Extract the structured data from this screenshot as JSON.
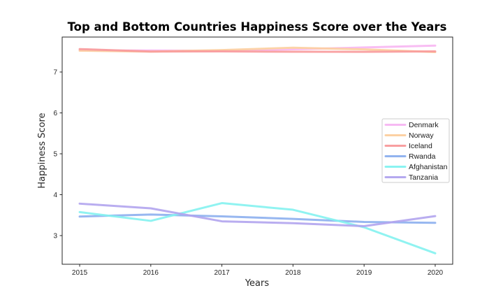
{
  "chart_data": {
    "type": "line",
    "title": "Top and Bottom Countries Happiness Score over the Years",
    "xlabel": "Years",
    "ylabel": "Happiness Score",
    "x": [
      2015,
      2016,
      2017,
      2018,
      2019,
      2020
    ],
    "x_tick_labels": [
      "2015",
      "2016",
      "2017",
      "2018",
      "2019",
      "2020"
    ],
    "y_ticks": [
      3,
      4,
      5,
      6,
      7
    ],
    "y_tick_labels": [
      "3",
      "4",
      "5",
      "6",
      "7"
    ],
    "xlim": [
      2014.754,
      2020.246
    ],
    "ylim": [
      2.299,
      7.855
    ],
    "grid": false,
    "legend_position": "center right",
    "series": [
      {
        "name": "Denmark",
        "color": "#f7b6f2",
        "values": [
          7.527,
          7.526,
          7.522,
          7.555,
          7.6,
          7.646
        ]
      },
      {
        "name": "Norway",
        "color": "#fccf9e",
        "values": [
          7.522,
          7.498,
          7.537,
          7.594,
          7.554,
          7.488
        ]
      },
      {
        "name": "Iceland",
        "color": "#f89a9b",
        "values": [
          7.561,
          7.501,
          7.504,
          7.495,
          7.494,
          7.504
        ]
      },
      {
        "name": "Rwanda",
        "color": "#8cafee",
        "values": [
          3.465,
          3.515,
          3.471,
          3.408,
          3.334,
          3.312
        ]
      },
      {
        "name": "Afghanistan",
        "color": "#84f2f0",
        "values": [
          3.575,
          3.36,
          3.794,
          3.632,
          3.203,
          2.567
        ]
      },
      {
        "name": "Tanzania",
        "color": "#b1a4ee",
        "values": [
          3.781,
          3.666,
          3.349,
          3.303,
          3.231,
          3.476
        ]
      }
    ],
    "style": {
      "axis_color": "#262626",
      "legend_border_color": "#cccccc",
      "background": "#ffffff",
      "line_width": 3
    }
  }
}
